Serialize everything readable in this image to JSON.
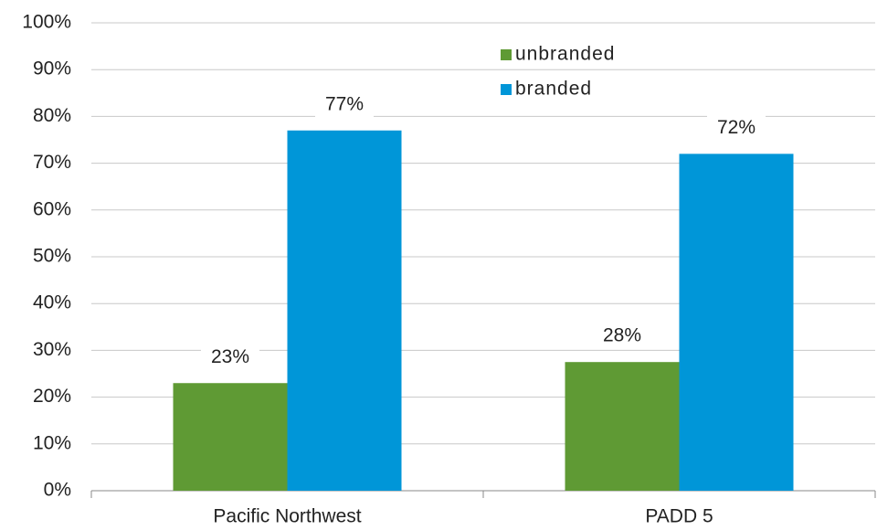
{
  "chart_data": {
    "type": "bar",
    "categories": [
      "Pacific Northwest",
      "PADD 5"
    ],
    "series": [
      {
        "name": "unbranded",
        "color": "#5f9a34",
        "values": [
          23,
          27.5
        ],
        "value_labels": [
          "23%",
          "28%"
        ]
      },
      {
        "name": "branded",
        "color": "#0096d8",
        "values": [
          77,
          72
        ],
        "value_labels": [
          "77%",
          "72%"
        ]
      }
    ],
    "ylim": [
      0,
      100
    ],
    "yticks": [
      {
        "value": 0,
        "label": "0%"
      },
      {
        "value": 10,
        "label": "10%"
      },
      {
        "value": 20,
        "label": "20%"
      },
      {
        "value": 30,
        "label": "30%"
      },
      {
        "value": 40,
        "label": "40%"
      },
      {
        "value": 50,
        "label": "50%"
      },
      {
        "value": 60,
        "label": "60%"
      },
      {
        "value": 70,
        "label": "70%"
      },
      {
        "value": 80,
        "label": "80%"
      },
      {
        "value": 90,
        "label": "90%"
      },
      {
        "value": 100,
        "label": "100%"
      }
    ],
    "grid": true,
    "legend": "top"
  }
}
